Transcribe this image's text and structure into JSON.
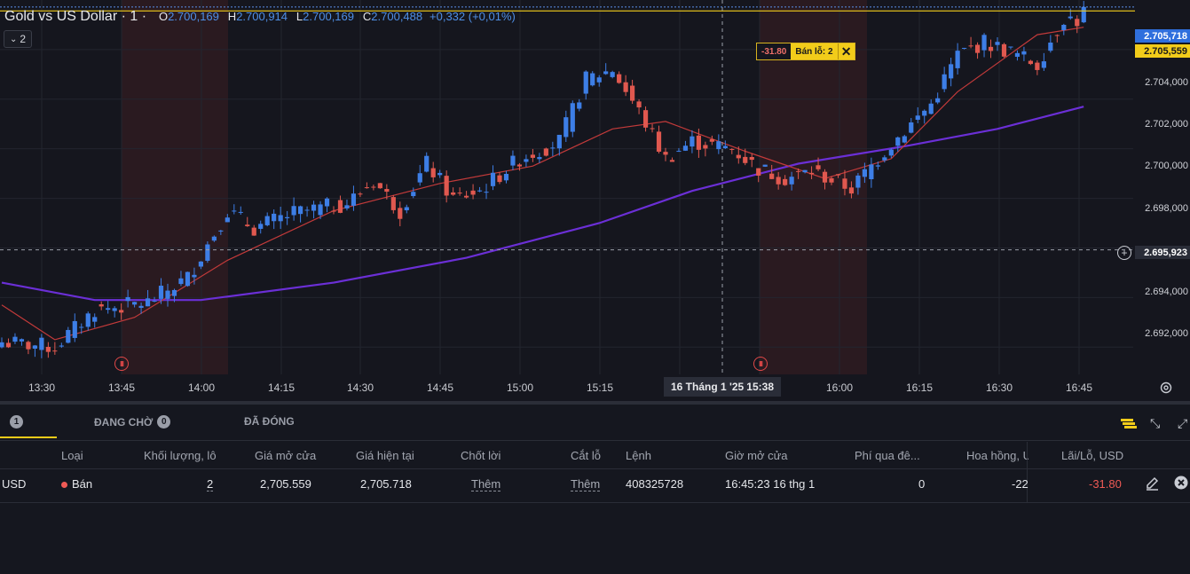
{
  "chart": {
    "symbol": "Gold vs US Dollar · 1 ·",
    "ohlc": {
      "o_label": "O",
      "o": "2.700,169",
      "h_label": "H",
      "h": "2.700,914",
      "l_label": "L",
      "l": "2.700,169",
      "c_label": "C",
      "c": "2.700,488",
      "change": "+0,332 (+0,01%)"
    },
    "indicator_toggle": "2",
    "y_axis_labels": [
      "2.704,000",
      "2.702,000",
      "2.700,000",
      "2.698,000",
      "2.694,000",
      "2.692,000"
    ],
    "x_axis_labels": [
      "13:30",
      "13:45",
      "14:00",
      "14:15",
      "14:30",
      "14:45",
      "15:00",
      "15:15",
      "16:00",
      "16:15",
      "16:30",
      "16:45"
    ],
    "crosshair_date": "16 Tháng 1 '25",
    "crosshair_time": "15:38",
    "crosshair_price": "2.695,923",
    "current_price_tag": "2.705,718",
    "order_price_tag": "2.705,559",
    "order_line": {
      "pnl": "-31.80",
      "label": "Bán lỗ: 2",
      "close": "✕"
    },
    "colors": {
      "up": "#3d7ee6",
      "down": "#e0584f",
      "ma_fast": "#c23a3a",
      "ma_slow": "#6b2fd6",
      "order_line": "#f2cc1a",
      "price_tag_bg": "#2f6fdd"
    },
    "icons": {
      "session_marker": "session-break-icon",
      "plus": "plus-icon",
      "settings": "settings-icon"
    },
    "chart_data": {
      "type": "candlestick",
      "y_range": [
        2690.9,
        2706.0
      ],
      "x_labels": [
        "13:30",
        "13:45",
        "14:00",
        "14:15",
        "14:30",
        "14:45",
        "15:00",
        "15:15",
        "16:00",
        "16:15",
        "16:30",
        "16:45"
      ],
      "close_path": [
        [
          0,
          2692.2
        ],
        [
          8,
          2692.0
        ],
        [
          14,
          2693.5
        ],
        [
          22,
          2693.8
        ],
        [
          28,
          2694.8
        ],
        [
          34,
          2697.5
        ],
        [
          38,
          2696.8
        ],
        [
          44,
          2697.4
        ],
        [
          52,
          2697.8
        ],
        [
          56,
          2698.7
        ],
        [
          60,
          2697.5
        ],
        [
          64,
          2699.4
        ],
        [
          68,
          2698.0
        ],
        [
          72,
          2698.3
        ],
        [
          78,
          2699.6
        ],
        [
          84,
          2700.3
        ],
        [
          88,
          2702.8
        ],
        [
          92,
          2703.2
        ],
        [
          96,
          2701.5
        ],
        [
          100,
          2699.6
        ],
        [
          104,
          2700.3
        ],
        [
          110,
          2700.0
        ],
        [
          114,
          2699.2
        ],
        [
          118,
          2698.8
        ],
        [
          122,
          2699.1
        ],
        [
          128,
          2698.4
        ],
        [
          134,
          2700.2
        ],
        [
          140,
          2701.8
        ],
        [
          144,
          2703.8
        ],
        [
          148,
          2704.3
        ],
        [
          152,
          2703.9
        ],
        [
          156,
          2703.4
        ],
        [
          160,
          2705.3
        ],
        [
          163,
          2705.1
        ]
      ],
      "ma_fast": [
        [
          0,
          2693.7
        ],
        [
          8,
          2692.3
        ],
        [
          20,
          2693.2
        ],
        [
          34,
          2695.5
        ],
        [
          50,
          2697.5
        ],
        [
          66,
          2698.6
        ],
        [
          80,
          2699.3
        ],
        [
          92,
          2700.8
        ],
        [
          100,
          2701.1
        ],
        [
          112,
          2699.9
        ],
        [
          124,
          2698.8
        ],
        [
          134,
          2699.6
        ],
        [
          144,
          2702.3
        ],
        [
          156,
          2704.6
        ],
        [
          163,
          2704.9
        ]
      ],
      "ma_slow": [
        [
          0,
          2694.6
        ],
        [
          14,
          2693.9
        ],
        [
          30,
          2693.9
        ],
        [
          50,
          2694.6
        ],
        [
          70,
          2695.6
        ],
        [
          90,
          2697.0
        ],
        [
          104,
          2698.3
        ],
        [
          120,
          2699.4
        ],
        [
          136,
          2700.1
        ],
        [
          150,
          2700.8
        ],
        [
          163,
          2701.7
        ]
      ]
    }
  },
  "panel": {
    "tabs": [
      {
        "label": "",
        "count": "1"
      },
      {
        "label": "ĐANG CHỜ",
        "count": "0"
      },
      {
        "label": "ĐÃ ĐÓNG",
        "count": ""
      }
    ],
    "columns": [
      "Loại",
      "Khối lượng, lô",
      "Giá mở cửa",
      "Giá hiện tại",
      "Chốt lời",
      "Cắt lỗ",
      "Lệnh",
      "Giờ mở cửa",
      "Phí qua đê...",
      "Hoa hồng, U",
      "Lãi/Lỗ, USD"
    ],
    "row": {
      "symbol": "USD",
      "type": "Bán",
      "volume": "2",
      "open_price": "2,705.559",
      "current_price": "2,705.718",
      "take_profit": "Thêm",
      "stop_loss": "Thêm",
      "order_id": "408325728",
      "open_time": "16:45:23 16 thg 1",
      "swap": "0",
      "commission": "-22",
      "pnl": "-31.80"
    }
  }
}
